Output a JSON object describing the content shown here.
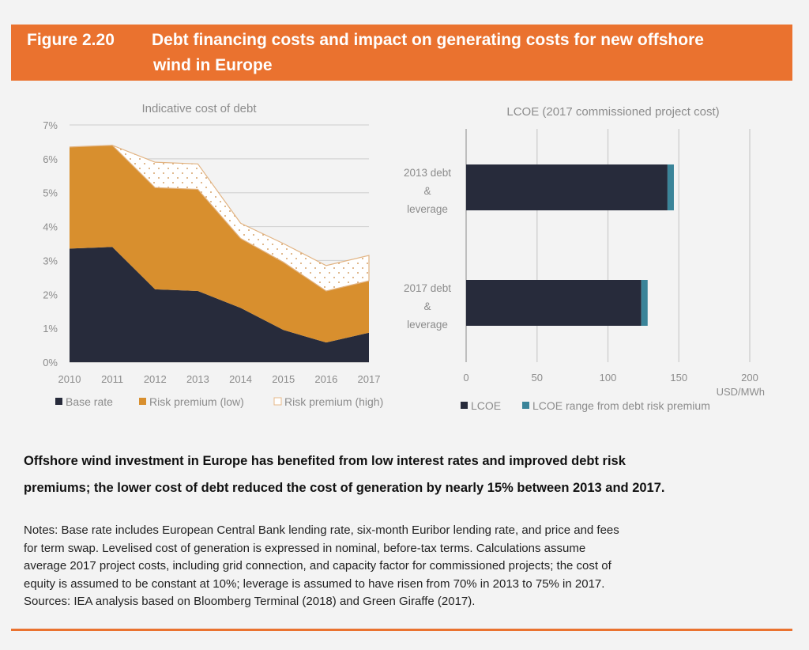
{
  "figure": {
    "number": "Figure 2.20",
    "title_line1": "Debt financing costs and impact on generating costs for new offshore",
    "title_line2": "wind in Europe"
  },
  "colors": {
    "banner": "#ea722f",
    "base_rate": "#272b3b",
    "risk_low": "#d88f2e",
    "risk_high_fill": "#ffffff",
    "risk_high_dot": "#d6a36a",
    "lcoe": "#272b3b",
    "lcoe_range": "#3a8499"
  },
  "chart_data": [
    {
      "type": "area",
      "stacked": true,
      "title": "Indicative cost of debt",
      "x": [
        "2010",
        "2011",
        "2012",
        "2013",
        "2014",
        "2015",
        "2016",
        "2017"
      ],
      "yticks": [
        "0%",
        "1%",
        "2%",
        "3%",
        "4%",
        "5%",
        "6%",
        "7%"
      ],
      "ylim": [
        0,
        7
      ],
      "yunit": "%",
      "grid": true,
      "legend_position": "bottom",
      "series": [
        {
          "name": "Base rate",
          "values": [
            3.35,
            3.4,
            2.15,
            2.1,
            1.6,
            0.95,
            0.58,
            0.87
          ]
        },
        {
          "name": "Risk premium (low)",
          "values": [
            3.0,
            3.0,
            3.0,
            3.0,
            2.05,
            2.0,
            1.52,
            1.53
          ]
        },
        {
          "name": "Risk premium (high)",
          "values": [
            0.0,
            0.0,
            0.75,
            0.75,
            0.45,
            0.55,
            0.75,
            0.75
          ]
        }
      ],
      "legend": [
        "Base rate",
        "Risk premium (low)",
        "Risk premium (high)"
      ]
    },
    {
      "type": "bar",
      "orientation": "horizontal",
      "stacked": true,
      "title": "LCOE (2017 commissioned project cost)",
      "categories": [
        "2013 debt & leverage",
        "2017 debt & leverage"
      ],
      "category_lines": [
        [
          "2013 debt",
          "&",
          "leverage"
        ],
        [
          "2017 debt",
          "&",
          "leverage"
        ]
      ],
      "xticks": [
        "0",
        "50",
        "100",
        "150",
        "200"
      ],
      "xlim": [
        0,
        200
      ],
      "xlabel": "USD/MWh",
      "grid": true,
      "legend_position": "bottom",
      "series": [
        {
          "name": "LCOE",
          "values": [
            142,
            123.5
          ]
        },
        {
          "name": "LCOE range from debt risk premium",
          "values": [
            4.5,
            4.5
          ]
        }
      ],
      "legend": [
        "LCOE",
        "LCOE range from debt risk premium"
      ]
    }
  ],
  "headline": {
    "line1": "Offshore wind investment in Europe has benefited from low interest rates and improved debt risk",
    "line2": "premiums; the lower cost of debt reduced the cost of generation by nearly 15% between 2013 and 2017."
  },
  "notes": {
    "lines": [
      "Notes: Base rate includes European Central Bank lending rate, six-month Euribor lending rate, and price and fees",
      "for term swap. Levelised cost of generation is expressed in nominal, before-tax terms. Calculations assume",
      "average 2017 project costs, including grid connection, and capacity factor for commissioned projects; the cost of",
      "equity is assumed to be constant at 10%; leverage  is assumed to have risen from 70% in 2013 to 75% in 2017.",
      "Sources: IEA analysis based on Bloomberg Terminal (2018) and Green Giraffe (2017)."
    ]
  }
}
